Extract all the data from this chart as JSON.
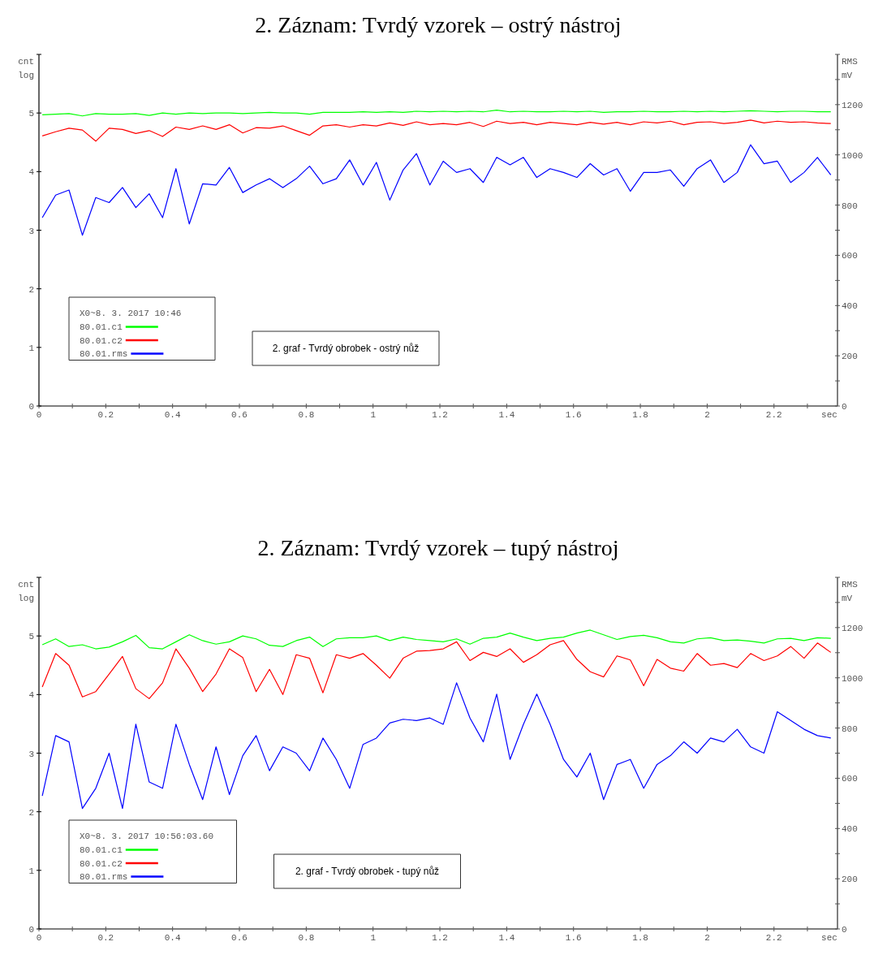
{
  "chart_data": [
    {
      "type": "line",
      "title": "2. Záznam: Tvrdý vzorek – ostrý nástroj",
      "xlabel": "sec",
      "ylabel": "cnt\nlog",
      "y2label": "RMS\nmV",
      "legend_title": "X0~8. 3. 2017 10:46",
      "legend": "bottom left",
      "grid": false,
      "annotations": [
        "2. graf - Tvrdý obrobek - ostrý nůž"
      ],
      "xlim": [
        0,
        2.39
      ],
      "ylim": [
        0,
        6
      ],
      "y2lim": [
        0,
        1400
      ],
      "xticks": [
        0,
        {
          "value": 0.1,
          "label": null
        },
        0.2,
        {
          "value": 0.3,
          "label": null
        },
        0.4,
        {
          "value": 0.5,
          "label": null
        },
        0.6,
        {
          "value": 0.7,
          "label": null
        },
        0.8,
        {
          "value": 0.9,
          "label": null
        },
        1,
        {
          "value": 1.1,
          "label": null
        },
        1.2,
        {
          "value": 1.3,
          "label": null
        },
        1.4,
        {
          "value": 1.5,
          "label": null
        },
        1.6,
        {
          "value": 1.7,
          "label": null
        },
        1.8,
        {
          "value": 1.9,
          "label": null
        },
        2,
        {
          "value": 2.1,
          "label": null
        },
        2.2,
        {
          "value": 2.3,
          "label": null
        }
      ],
      "yticks": [
        0,
        1,
        2,
        3,
        4,
        5
      ],
      "y2ticks": [
        0,
        {
          "value": 100,
          "label": null
        },
        200,
        {
          "value": 300,
          "label": null
        },
        400,
        {
          "value": 500,
          "label": null
        },
        600,
        {
          "value": 700,
          "label": null
        },
        800,
        {
          "value": 900,
          "label": null
        },
        1000,
        {
          "value": 1100,
          "label": null
        },
        1200,
        {
          "value": 1300,
          "label": null
        }
      ],
      "x": [
        0.01,
        0.05,
        0.09,
        0.13,
        0.17,
        0.21,
        0.25,
        0.29,
        0.33,
        0.37,
        0.41,
        0.45,
        0.49,
        0.53,
        0.57,
        0.61,
        0.65,
        0.69,
        0.73,
        0.77,
        0.81,
        0.85,
        0.89,
        0.93,
        0.97,
        1.01,
        1.05,
        1.09,
        1.13,
        1.17,
        1.21,
        1.25,
        1.29,
        1.33,
        1.37,
        1.41,
        1.45,
        1.49,
        1.53,
        1.57,
        1.61,
        1.65,
        1.69,
        1.73,
        1.77,
        1.81,
        1.85,
        1.89,
        1.93,
        1.97,
        2.01,
        2.05,
        2.09,
        2.13,
        2.17,
        2.21,
        2.25,
        2.29,
        2.33,
        2.37
      ],
      "series": [
        {
          "name": "80.01.c1",
          "color": "#00ff00",
          "values": [
            4.97,
            4.98,
            4.99,
            4.95,
            4.99,
            4.98,
            4.98,
            4.99,
            4.96,
            5.0,
            4.98,
            5.0,
            4.99,
            5.0,
            5.0,
            4.99,
            5.0,
            5.01,
            5.0,
            5.0,
            4.98,
            5.01,
            5.01,
            5.01,
            5.02,
            5.01,
            5.02,
            5.01,
            5.03,
            5.02,
            5.03,
            5.02,
            5.03,
            5.02,
            5.05,
            5.02,
            5.03,
            5.02,
            5.02,
            5.03,
            5.02,
            5.03,
            5.01,
            5.02,
            5.02,
            5.03,
            5.02,
            5.02,
            5.03,
            5.02,
            5.03,
            5.02,
            5.03,
            5.04,
            5.03,
            5.02,
            5.03,
            5.03,
            5.02,
            5.02
          ]
        },
        {
          "name": "80.01.c2",
          "color": "#ff0000",
          "values": [
            4.61,
            4.68,
            4.74,
            4.71,
            4.52,
            4.74,
            4.72,
            4.65,
            4.7,
            4.6,
            4.76,
            4.72,
            4.78,
            4.72,
            4.8,
            4.66,
            4.75,
            4.74,
            4.78,
            4.7,
            4.62,
            4.78,
            4.8,
            4.76,
            4.8,
            4.78,
            4.83,
            4.79,
            4.85,
            4.8,
            4.82,
            4.8,
            4.84,
            4.77,
            4.86,
            4.82,
            4.84,
            4.8,
            4.84,
            4.82,
            4.8,
            4.84,
            4.81,
            4.84,
            4.8,
            4.85,
            4.83,
            4.86,
            4.8,
            4.84,
            4.85,
            4.82,
            4.84,
            4.88,
            4.83,
            4.86,
            4.84,
            4.85,
            4.83,
            4.82
          ]
        },
        {
          "name": "80.01.rms",
          "color": "#0000ff",
          "axis": "y2",
          "values": [
            750,
            840,
            860,
            680,
            830,
            810,
            870,
            790,
            845,
            750,
            945,
            725,
            885,
            880,
            950,
            850,
            880,
            905,
            870,
            905,
            955,
            885,
            905,
            980,
            880,
            970,
            820,
            940,
            1005,
            880,
            975,
            930,
            945,
            890,
            990,
            960,
            990,
            910,
            945,
            930,
            910,
            965,
            920,
            945,
            855,
            930,
            930,
            940,
            875,
            945,
            980,
            890,
            930,
            1040,
            965,
            975,
            890,
            930,
            990,
            920
          ]
        }
      ]
    },
    {
      "type": "line",
      "title": "2. Záznam: Tvrdý vzorek – tupý nástroj",
      "xlabel": "sec",
      "ylabel": "cnt\nlog",
      "y2label": "RMS\nmV",
      "legend_title": "X0~8. 3. 2017 10:56:03.60",
      "legend": "bottom left",
      "grid": false,
      "annotations": [
        "2. graf - Tvrdý obrobek - tupý nůž"
      ],
      "xlim": [
        0,
        2.39
      ],
      "ylim": [
        0,
        6
      ],
      "y2lim": [
        0,
        1400
      ],
      "xticks": [
        0,
        {
          "value": 0.1,
          "label": null
        },
        0.2,
        {
          "value": 0.3,
          "label": null
        },
        0.4,
        {
          "value": 0.5,
          "label": null
        },
        0.6,
        {
          "value": 0.7,
          "label": null
        },
        0.8,
        {
          "value": 0.9,
          "label": null
        },
        1,
        {
          "value": 1.1,
          "label": null
        },
        1.2,
        {
          "value": 1.3,
          "label": null
        },
        1.4,
        {
          "value": 1.5,
          "label": null
        },
        1.6,
        {
          "value": 1.7,
          "label": null
        },
        1.8,
        {
          "value": 1.9,
          "label": null
        },
        2,
        {
          "value": 2.1,
          "label": null
        },
        2.2,
        {
          "value": 2.3,
          "label": null
        }
      ],
      "yticks": [
        0,
        1,
        2,
        3,
        4,
        5
      ],
      "y2ticks": [
        0,
        {
          "value": 100,
          "label": null
        },
        200,
        {
          "value": 300,
          "label": null
        },
        400,
        {
          "value": 500,
          "label": null
        },
        600,
        {
          "value": 700,
          "label": null
        },
        800,
        {
          "value": 900,
          "label": null
        },
        1000,
        {
          "value": 1100,
          "label": null
        },
        1200,
        {
          "value": 1300,
          "label": null
        }
      ],
      "x": [
        0.01,
        0.05,
        0.09,
        0.13,
        0.17,
        0.21,
        0.25,
        0.29,
        0.33,
        0.37,
        0.41,
        0.45,
        0.49,
        0.53,
        0.57,
        0.61,
        0.65,
        0.69,
        0.73,
        0.77,
        0.81,
        0.85,
        0.89,
        0.93,
        0.97,
        1.01,
        1.05,
        1.09,
        1.13,
        1.17,
        1.21,
        1.25,
        1.29,
        1.33,
        1.37,
        1.41,
        1.45,
        1.49,
        1.53,
        1.57,
        1.61,
        1.65,
        1.69,
        1.73,
        1.77,
        1.81,
        1.85,
        1.89,
        1.93,
        1.97,
        2.01,
        2.05,
        2.09,
        2.13,
        2.17,
        2.21,
        2.25,
        2.29,
        2.33,
        2.37
      ],
      "series": [
        {
          "name": "80.01.c1",
          "color": "#00ff00",
          "values": [
            4.85,
            4.95,
            4.82,
            4.85,
            4.78,
            4.81,
            4.9,
            5.01,
            4.8,
            4.78,
            4.9,
            5.02,
            4.92,
            4.86,
            4.9,
            5.0,
            4.95,
            4.84,
            4.82,
            4.92,
            4.98,
            4.82,
            4.95,
            4.97,
            4.97,
            5.0,
            4.92,
            4.98,
            4.94,
            4.92,
            4.9,
            4.95,
            4.86,
            4.96,
            4.98,
            5.05,
            4.98,
            4.92,
            4.96,
            4.98,
            5.05,
            5.1,
            5.02,
            4.94,
            4.99,
            5.01,
            4.97,
            4.9,
            4.88,
            4.95,
            4.97,
            4.92,
            4.93,
            4.91,
            4.88,
            4.95,
            4.96,
            4.92,
            4.97,
            4.96
          ]
        },
        {
          "name": "80.01.c2",
          "color": "#ff0000",
          "values": [
            4.13,
            4.7,
            4.5,
            3.96,
            4.05,
            4.35,
            4.65,
            4.1,
            3.93,
            4.2,
            4.78,
            4.45,
            4.05,
            4.35,
            4.78,
            4.63,
            4.05,
            4.43,
            4.0,
            4.68,
            4.62,
            4.03,
            4.68,
            4.62,
            4.7,
            4.5,
            4.28,
            4.62,
            4.74,
            4.75,
            4.78,
            4.9,
            4.58,
            4.72,
            4.65,
            4.78,
            4.55,
            4.68,
            4.85,
            4.92,
            4.6,
            4.39,
            4.3,
            4.66,
            4.59,
            4.15,
            4.6,
            4.45,
            4.4,
            4.7,
            4.5,
            4.53,
            4.46,
            4.7,
            4.58,
            4.66,
            4.82,
            4.62,
            4.88,
            4.72
          ]
        },
        {
          "name": "80.01.rms",
          "color": "#0000ff",
          "axis": "y2",
          "values": [
            530,
            770,
            745,
            480,
            560,
            700,
            480,
            815,
            585,
            560,
            815,
            655,
            515,
            725,
            535,
            690,
            770,
            630,
            725,
            700,
            630,
            760,
            675,
            560,
            735,
            760,
            820,
            835,
            830,
            840,
            815,
            980,
            840,
            745,
            935,
            675,
            815,
            935,
            815,
            675,
            605,
            700,
            515,
            655,
            675,
            560,
            655,
            690,
            745,
            700,
            760,
            745,
            795,
            725,
            700,
            865,
            830,
            795,
            770,
            760
          ]
        }
      ]
    }
  ]
}
